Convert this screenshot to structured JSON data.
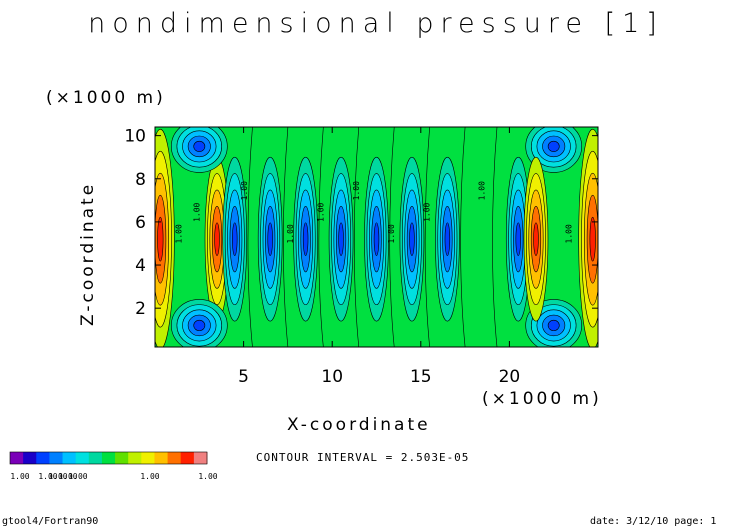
{
  "header": {
    "title": "nondimensional pressure [1]"
  },
  "footer": {
    "left": "gtool4/Fortran90",
    "right": "date: 3/12/10 page: 1"
  },
  "contour_info": {
    "interval_text": "CONTOUR INTERVAL = 2.503E-05"
  },
  "colorbar": {
    "colors": [
      "#7a00b8",
      "#1a00c8",
      "#0040ff",
      "#0080ff",
      "#00c0ff",
      "#00e0e0",
      "#00d8a0",
      "#00e040",
      "#60e000",
      "#c0f000",
      "#f0f000",
      "#ffc000",
      "#ff7000",
      "#ff2000",
      "#f08080"
    ],
    "labels": [
      "1.00",
      "1.00",
      "1.00",
      "1.00",
      "1.00",
      "1.00",
      "1.00"
    ]
  },
  "chart_data": {
    "type": "contour",
    "title": "nondimensional pressure [1]",
    "xlabel": "X-coordinate",
    "ylabel": "Z-coordinate",
    "x_unit": "(×1000 m)",
    "y_unit": "(×1000 m)",
    "xlim": [
      0,
      25
    ],
    "ylim": [
      0.2,
      10.4
    ],
    "x_ticks": [
      5,
      10,
      15,
      20
    ],
    "y_ticks": [
      2,
      4,
      6,
      8,
      10
    ],
    "x_tick_labels": [
      "5",
      "10",
      "15",
      "20"
    ],
    "y_tick_labels": [
      "2",
      "4",
      "6",
      "8",
      "10"
    ],
    "contour_label": "1.00",
    "contour_interval": "2.503E-05",
    "features": [
      {
        "kind": "high",
        "x": 0.3,
        "z": 5.2
      },
      {
        "kind": "high",
        "x": 3.5,
        "z": 5.2
      },
      {
        "kind": "low",
        "x": 2.5,
        "z": 9.5
      },
      {
        "kind": "low",
        "x": 2.5,
        "z": 1.2
      },
      {
        "kind": "low",
        "x": 4.5,
        "z": 5.2
      },
      {
        "kind": "low",
        "x": 6.5,
        "z": 5.2
      },
      {
        "kind": "low",
        "x": 8.5,
        "z": 5.2
      },
      {
        "kind": "low",
        "x": 10.5,
        "z": 5.2
      },
      {
        "kind": "low",
        "x": 12.5,
        "z": 5.2
      },
      {
        "kind": "low",
        "x": 14.5,
        "z": 5.2
      },
      {
        "kind": "low",
        "x": 16.5,
        "z": 5.2
      },
      {
        "kind": "low",
        "x": 20.5,
        "z": 5.2
      },
      {
        "kind": "low",
        "x": 22.5,
        "z": 9.5
      },
      {
        "kind": "low",
        "x": 22.5,
        "z": 1.2
      },
      {
        "kind": "high",
        "x": 21.5,
        "z": 5.2
      },
      {
        "kind": "high",
        "x": 24.7,
        "z": 5.2
      }
    ]
  }
}
